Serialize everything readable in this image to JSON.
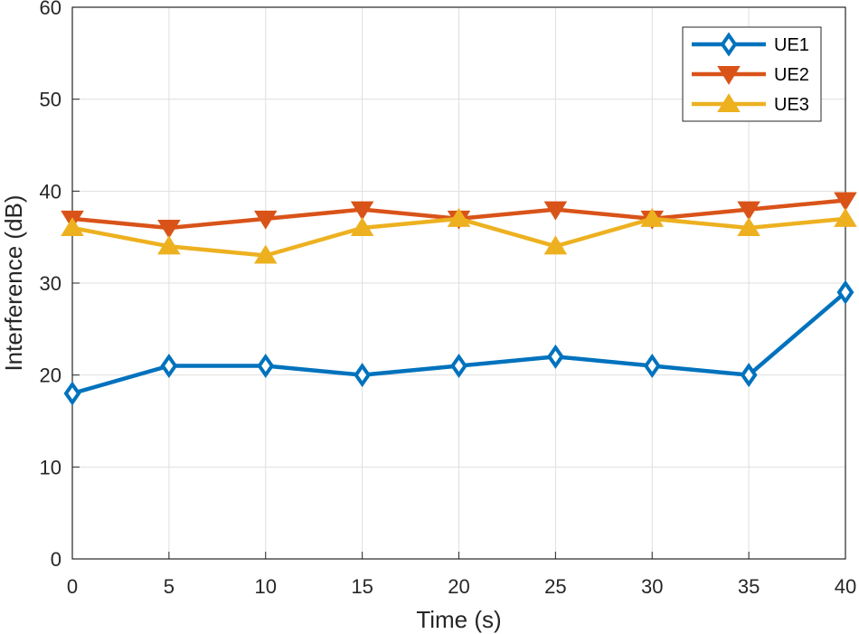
{
  "chart_data": {
    "type": "line",
    "title": "",
    "xlabel": "Time (s)",
    "ylabel": "Interference (dB)",
    "x": [
      0,
      5,
      10,
      15,
      20,
      25,
      30,
      35,
      40
    ],
    "xlim": [
      0,
      40
    ],
    "ylim": [
      0,
      60
    ],
    "xticks": [
      0,
      5,
      10,
      15,
      20,
      25,
      30,
      35,
      40
    ],
    "yticks": [
      0,
      10,
      20,
      30,
      40,
      50,
      60
    ],
    "grid": true,
    "legend_position": "top-right",
    "series": [
      {
        "name": "UE1",
        "color": "#0072BD",
        "marker": "diamond",
        "values": [
          18,
          21,
          21,
          20,
          21,
          22,
          21,
          20,
          29
        ]
      },
      {
        "name": "UE2",
        "color": "#D95319",
        "marker": "triangle-down",
        "values": [
          37,
          36,
          37,
          38,
          37,
          38,
          37,
          38,
          39
        ]
      },
      {
        "name": "UE3",
        "color": "#EDB120",
        "marker": "triangle-up",
        "values": [
          36,
          34,
          33,
          36,
          37,
          34,
          37,
          36,
          37
        ]
      }
    ]
  }
}
